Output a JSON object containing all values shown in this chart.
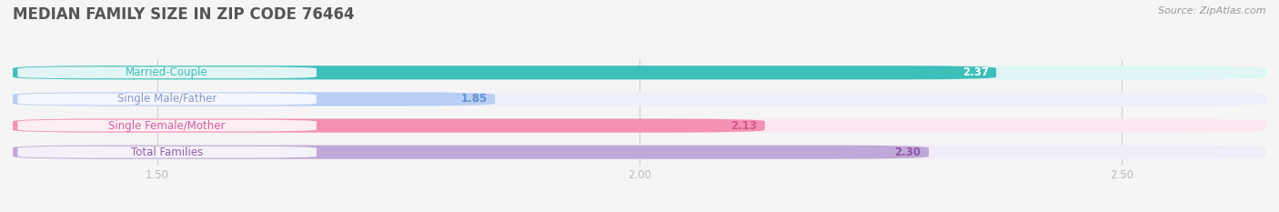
{
  "title": "MEDIAN FAMILY SIZE IN ZIP CODE 76464",
  "source": "Source: ZipAtlas.com",
  "categories": [
    "Married-Couple",
    "Single Male/Father",
    "Single Female/Mother",
    "Total Families"
  ],
  "values": [
    2.37,
    1.85,
    2.13,
    2.3
  ],
  "bar_colors": [
    "#3dbfba",
    "#b8cef5",
    "#f590b5",
    "#c0a8d8"
  ],
  "bar_bg_colors": [
    "#e0f5f5",
    "#edf0fa",
    "#fce8f2",
    "#f0ecf8"
  ],
  "value_label_colors": [
    "#ffffff",
    "#6090d0",
    "#d05888",
    "#8858a8"
  ],
  "cat_label_colors": [
    "#3dbfba",
    "#8898c8",
    "#d060a0",
    "#9060a8"
  ],
  "xlim_min": 1.35,
  "xlim_max": 2.65,
  "xticks": [
    1.5,
    2.0,
    2.5
  ],
  "bar_height": 0.52,
  "background_color": "#f5f5f5",
  "title_fontsize": 12,
  "label_fontsize": 8.5,
  "value_fontsize": 8.5,
  "tick_fontsize": 8.5,
  "source_fontsize": 8
}
